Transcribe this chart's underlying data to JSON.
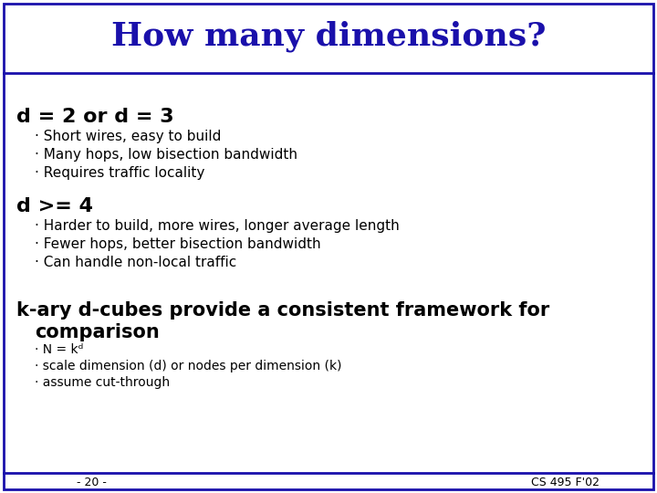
{
  "title": "How many dimensions?",
  "title_color": "#1a10ab",
  "title_fontsize": 26,
  "background_color": "#ffffff",
  "border_color": "#1a10ab",
  "body_color": "#000000",
  "slide_number": "- 20 -",
  "course_id": "CS 495 F'02",
  "sections": [
    {
      "header": "d = 2 or d = 3",
      "header_fontsize": 16,
      "bullets": [
        "Short wires, easy to build",
        "Many hops, low bisection bandwidth",
        "Requires traffic locality"
      ]
    },
    {
      "header": "d >= 4",
      "header_fontsize": 16,
      "bullets": [
        "Harder to build, more wires, longer average length",
        "Fewer hops, better bisection bandwidth",
        "Can handle non-local traffic"
      ]
    }
  ],
  "kary_line1": "k-ary d-cubes provide a consistent framework for",
  "kary_line2": "  comparison",
  "kary_bullets": [
    "N = kᵈ",
    "scale dimension (d) or nodes per dimension (k)",
    "assume cut-through"
  ],
  "header_fontsize": 16,
  "bullet_fontsize": 11,
  "kary_fontsize": 15,
  "kary_bullet_fontsize": 10
}
